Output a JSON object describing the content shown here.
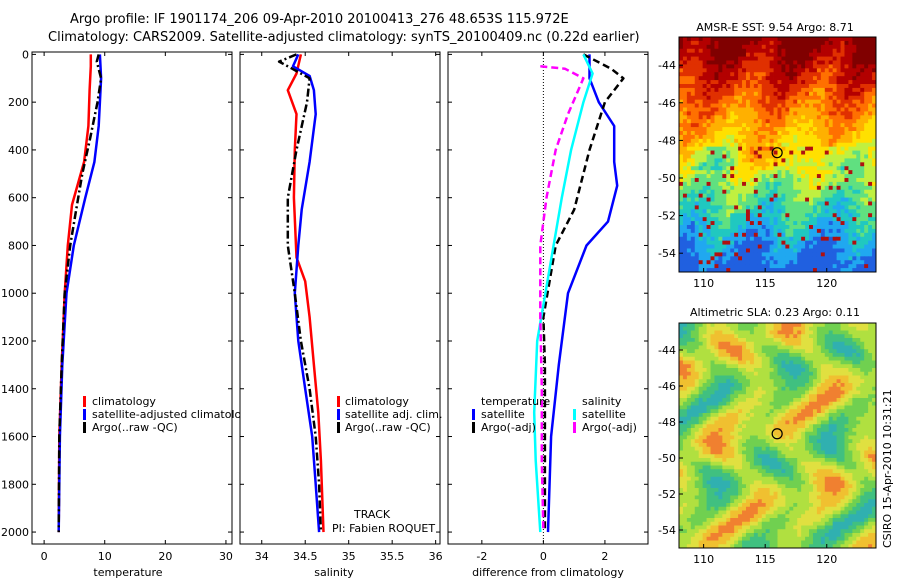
{
  "header": {
    "line1": "Argo profile: IF 1901174_206 09-Apr-2010 20100413_276 48.653S 115.972E",
    "line2": "Climatology: CARS2009. Satellite-adjusted climatology: synTS_20100409.nc (0.22d earlier)"
  },
  "side_stamp": "CSIRO 15-Apr-2010 10:31:21",
  "colors": {
    "climatology": "#ff0000",
    "satellite": "#0000ff",
    "argo": "#000000",
    "temp_satellite_diff": "#00ffff",
    "sal_argo_diff": "#ff00ff"
  },
  "chart_data": [
    {
      "type": "line",
      "id": "temperature",
      "xlabel": "temperature",
      "ylabel": "",
      "xlim": [
        -2,
        31
      ],
      "ylim": [
        2050,
        -10
      ],
      "y_inverted": true,
      "xticks": [
        0,
        10,
        20,
        30
      ],
      "yticks": [
        0,
        200,
        400,
        600,
        800,
        1000,
        1200,
        1400,
        1600,
        1800,
        2000
      ],
      "series": [
        {
          "name": "climatology",
          "color": "#ff0000",
          "style": "solid",
          "points": [
            [
              7.7,
              0
            ],
            [
              7.7,
              50
            ],
            [
              7.5,
              150
            ],
            [
              7.3,
              300
            ],
            [
              6.6,
              450
            ],
            [
              4.6,
              630
            ],
            [
              3.9,
              800
            ],
            [
              3.4,
              1000
            ],
            [
              2.9,
              1300
            ],
            [
              2.5,
              1600
            ],
            [
              2.4,
              2000
            ]
          ]
        },
        {
          "name": "satellite-adjusted climatology",
          "color": "#0000ff",
          "style": "solid",
          "points": [
            [
              9.2,
              0
            ],
            [
              9.4,
              100
            ],
            [
              9.0,
              300
            ],
            [
              8.3,
              450
            ],
            [
              6.8,
              600
            ],
            [
              4.9,
              800
            ],
            [
              3.7,
              1000
            ],
            [
              3.0,
              1300
            ],
            [
              2.6,
              1600
            ],
            [
              2.4,
              2000
            ]
          ]
        },
        {
          "name": "Argo(..raw -QC)",
          "color": "#000000",
          "style": "dashdot",
          "points": [
            [
              9.0,
              0
            ],
            [
              8.7,
              30
            ],
            [
              9.4,
              100
            ],
            [
              8.8,
              200
            ],
            [
              7.6,
              350
            ],
            [
              6.3,
              500
            ],
            [
              5.3,
              650
            ],
            [
              4.3,
              800
            ],
            [
              3.4,
              1000
            ],
            [
              2.9,
              1300
            ],
            [
              2.5,
              1600
            ],
            [
              2.4,
              2000
            ]
          ]
        }
      ],
      "legend": {
        "placement": "bottom-right",
        "labels": [
          "climatology",
          "satellite-adjusted climatolog",
          "Argo(..raw -QC)"
        ]
      }
    },
    {
      "type": "line",
      "id": "salinity",
      "xlabel": "salinity",
      "ylabel": "",
      "xlim": [
        33.75,
        36.05
      ],
      "ylim": [
        2050,
        -10
      ],
      "y_inverted": true,
      "xticks": [
        34,
        34.5,
        35,
        35.5,
        36
      ],
      "series": [
        {
          "name": "climatology",
          "color": "#ff0000",
          "style": "solid",
          "points": [
            [
              34.45,
              0
            ],
            [
              34.4,
              80
            ],
            [
              34.3,
              150
            ],
            [
              34.4,
              250
            ],
            [
              34.38,
              400
            ],
            [
              34.37,
              600
            ],
            [
              34.4,
              850
            ],
            [
              34.5,
              950
            ],
            [
              34.55,
              1100
            ],
            [
              34.6,
              1300
            ],
            [
              34.65,
              1500
            ],
            [
              34.68,
              1700
            ],
            [
              34.71,
              2000
            ]
          ]
        },
        {
          "name": "satellite adj. clim.",
          "color": "#0000ff",
          "style": "solid",
          "points": [
            [
              34.42,
              0
            ],
            [
              34.36,
              50
            ],
            [
              34.55,
              90
            ],
            [
              34.6,
              150
            ],
            [
              34.62,
              250
            ],
            [
              34.55,
              450
            ],
            [
              34.46,
              650
            ],
            [
              34.42,
              800
            ],
            [
              34.38,
              1000
            ],
            [
              34.42,
              1200
            ],
            [
              34.5,
              1400
            ],
            [
              34.58,
              1600
            ],
            [
              34.62,
              1800
            ],
            [
              34.66,
              2000
            ]
          ]
        },
        {
          "name": "Argo(..raw -QC)",
          "color": "#000000",
          "style": "dashdot",
          "points": [
            [
              34.4,
              0
            ],
            [
              34.2,
              30
            ],
            [
              34.35,
              60
            ],
            [
              34.55,
              100
            ],
            [
              34.52,
              200
            ],
            [
              34.4,
              400
            ],
            [
              34.3,
              600
            ],
            [
              34.3,
              800
            ],
            [
              34.38,
              1000
            ],
            [
              34.45,
              1200
            ],
            [
              34.55,
              1400
            ],
            [
              34.62,
              1600
            ],
            [
              34.66,
              1800
            ],
            [
              34.68,
              2000
            ]
          ]
        }
      ],
      "legend": {
        "placement": "bottom-right",
        "labels": [
          "climatology",
          "satellite adj. clim.",
          "Argo(..raw -QC)"
        ]
      },
      "annotations": [
        "TRACK",
        "PI: Fabien ROQUET"
      ]
    },
    {
      "type": "line",
      "id": "difference",
      "xlabel": "difference from climatology",
      "ylabel": "",
      "xlim": [
        -3.1,
        3.4
      ],
      "ylim": [
        2050,
        -10
      ],
      "y_inverted": true,
      "xticks": [
        -2,
        0,
        2
      ],
      "zero_line": "dotted",
      "series": [
        {
          "name": "temperature satellite",
          "color": "#0000ff",
          "style": "solid",
          "points": [
            [
              1.5,
              0
            ],
            [
              1.5,
              100
            ],
            [
              1.8,
              200
            ],
            [
              2.3,
              300
            ],
            [
              2.3,
              450
            ],
            [
              2.4,
              550
            ],
            [
              2.1,
              700
            ],
            [
              1.4,
              800
            ],
            [
              0.8,
              1000
            ],
            [
              0.5,
              1300
            ],
            [
              0.25,
              1600
            ],
            [
              0.15,
              2000
            ]
          ]
        },
        {
          "name": "temperature Argo(-adj)",
          "color": "#000000",
          "style": "dashed",
          "points": [
            [
              1.3,
              0
            ],
            [
              2.2,
              60
            ],
            [
              2.6,
              100
            ],
            [
              2.0,
              200
            ],
            [
              1.5,
              400
            ],
            [
              1.0,
              650
            ],
            [
              0.4,
              800
            ],
            [
              0.0,
              1100
            ],
            [
              0.05,
              1300
            ],
            [
              0.05,
              1600
            ],
            [
              0.05,
              2000
            ]
          ]
        },
        {
          "name": "salinity satellite",
          "color": "#00ffff",
          "style": "solid",
          "points": [
            [
              1.3,
              0
            ],
            [
              1.6,
              80
            ],
            [
              1.3,
              200
            ],
            [
              0.9,
              400
            ],
            [
              0.6,
              600
            ],
            [
              0.2,
              900
            ],
            [
              -0.2,
              1200
            ],
            [
              -0.3,
              1500
            ],
            [
              -0.25,
              1700
            ],
            [
              -0.1,
              2000
            ]
          ]
        },
        {
          "name": "salinity Argo(-adj)",
          "color": "#ff00ff",
          "style": "dashed",
          "points": [
            [
              -0.1,
              50
            ],
            [
              0.7,
              60
            ],
            [
              1.3,
              100
            ],
            [
              0.8,
              250
            ],
            [
              0.4,
              400
            ],
            [
              0.1,
              600
            ],
            [
              -0.1,
              800
            ],
            [
              -0.1,
              1100
            ],
            [
              -0.05,
              1400
            ],
            [
              -0.05,
              1700
            ],
            [
              0.0,
              2000
            ]
          ]
        }
      ],
      "legend": {
        "placement": "bottom-right",
        "headers": [
          "temperature",
          "salinity"
        ],
        "labels": [
          "satellite",
          "Argo(-adj)",
          "satellite",
          "Argo(-adj)"
        ]
      }
    },
    {
      "type": "heatmap",
      "id": "sst_map",
      "title": "AMSR-E SST: 9.54 Argo: 8.71",
      "xlim": [
        108,
        124
      ],
      "ylim": [
        -55,
        -42.5
      ],
      "xticks": [
        110,
        115,
        120
      ],
      "yticks": [
        -44,
        -46,
        -48,
        -50,
        -52,
        -54
      ],
      "argo_position": [
        115.972,
        -48.653
      ],
      "colors": [
        "#800000",
        "#b30000",
        "#e03000",
        "#ff7000",
        "#ffb000",
        "#ffe000",
        "#c0f040",
        "#60e080",
        "#20c8c0",
        "#20a8f0",
        "#2060e0"
      ],
      "markers_color": "#b01010"
    },
    {
      "type": "heatmap",
      "id": "sla_map",
      "title": "Altimetric SLA: 0.23 Argo: 0.11",
      "xlim": [
        108,
        124
      ],
      "ylim": [
        -55,
        -42.5
      ],
      "xticks": [
        110,
        115,
        120
      ],
      "yticks": [
        -44,
        -46,
        -48,
        -50,
        -52,
        -54
      ],
      "argo_position": [
        115.972,
        -48.653
      ],
      "colors": [
        "#f08030",
        "#f0c030",
        "#e0e040",
        "#b0e040",
        "#70d050",
        "#40c080",
        "#30b0b0"
      ]
    }
  ]
}
